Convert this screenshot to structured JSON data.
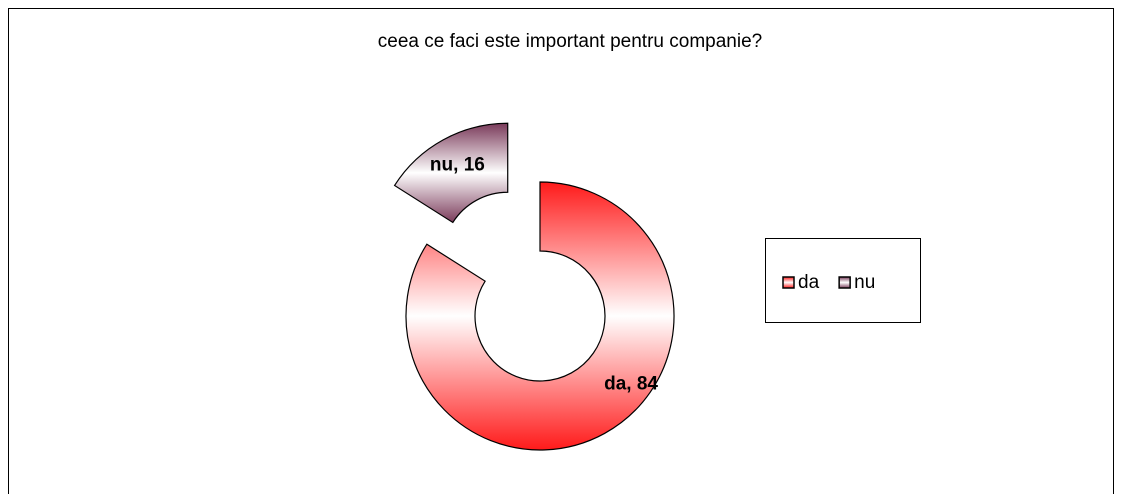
{
  "chart_data": {
    "type": "doughnut",
    "title": "ceea ce faci este important pentru companie?",
    "categories": [
      "da",
      "nu"
    ],
    "values": [
      84,
      16
    ],
    "value_labels": [
      "da, 84",
      "nu, 16"
    ],
    "colors": [
      "#ff1a1a",
      "#7a3a5a"
    ],
    "exploded": [
      false,
      true
    ],
    "legend": "right"
  }
}
